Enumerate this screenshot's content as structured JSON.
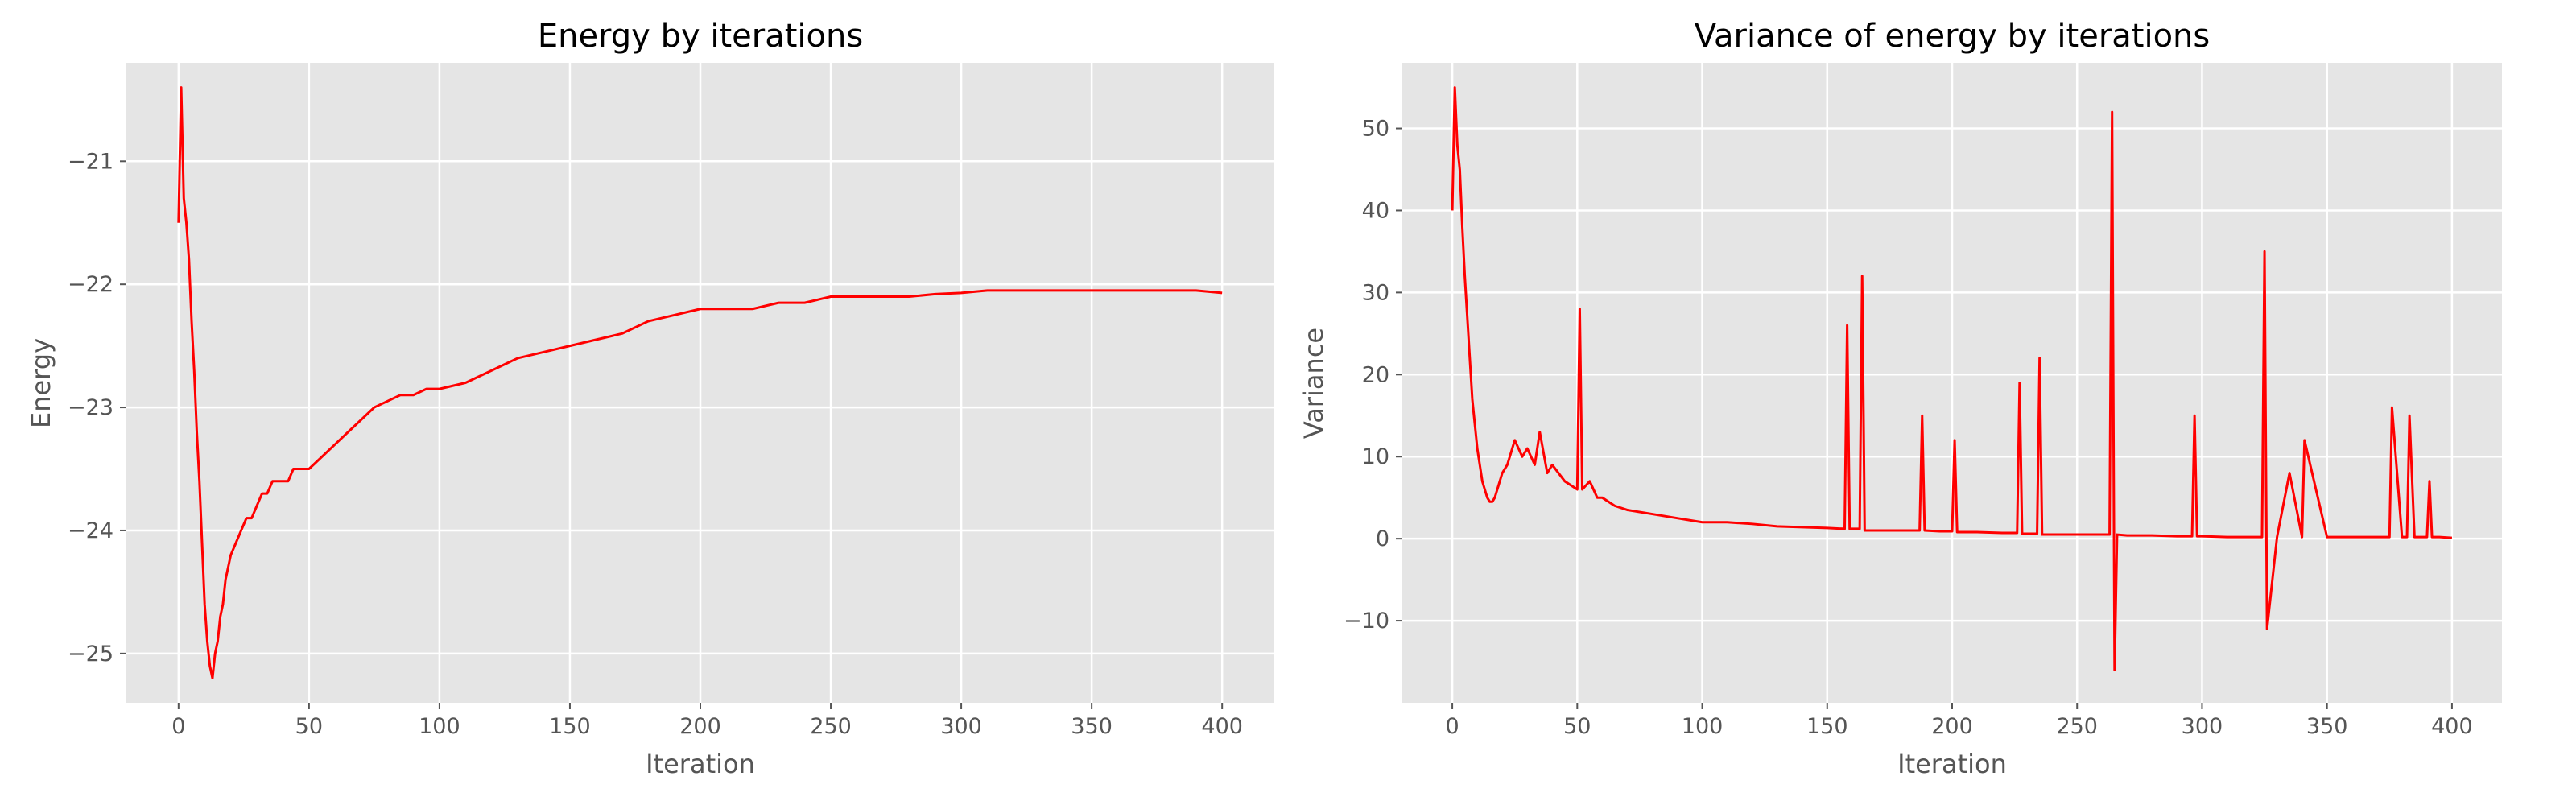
{
  "chart_data": [
    {
      "type": "line",
      "title": "Energy by iterations",
      "xlabel": "Iteration",
      "ylabel": "Energy",
      "xlim": [
        -20,
        420
      ],
      "ylim": [
        -25.4,
        -20.2
      ],
      "xticks": [
        0,
        50,
        100,
        150,
        200,
        250,
        300,
        350,
        400
      ],
      "yticks": [
        -25,
        -24,
        -23,
        -22,
        -21
      ],
      "xtick_labels": [
        "0",
        "50",
        "100",
        "150",
        "200",
        "250",
        "300",
        "350",
        "400"
      ],
      "ytick_labels": [
        "−25",
        "−24",
        "−23",
        "−22",
        "−21"
      ],
      "grid": true,
      "color": "#ff0000",
      "series": [
        {
          "x": [
            0,
            1,
            2,
            3,
            4,
            5,
            6,
            7,
            8,
            9,
            10,
            11,
            12,
            13,
            14,
            15,
            16,
            17,
            18,
            19,
            20,
            22,
            24,
            26,
            28,
            30,
            32,
            34,
            36,
            38,
            40,
            42,
            44,
            46,
            48,
            50,
            55,
            60,
            65,
            70,
            75,
            80,
            85,
            90,
            95,
            100,
            110,
            120,
            130,
            140,
            150,
            160,
            170,
            180,
            190,
            200,
            210,
            220,
            230,
            240,
            250,
            260,
            270,
            280,
            290,
            300,
            310,
            320,
            330,
            340,
            350,
            360,
            370,
            380,
            390,
            400
          ],
          "y": [
            -21.5,
            -20.4,
            -21.3,
            -21.5,
            -21.8,
            -22.3,
            -22.7,
            -23.2,
            -23.6,
            -24.1,
            -24.6,
            -24.9,
            -25.1,
            -25.2,
            -25.0,
            -24.9,
            -24.7,
            -24.6,
            -24.4,
            -24.3,
            -24.2,
            -24.1,
            -24.0,
            -23.9,
            -23.9,
            -23.8,
            -23.7,
            -23.7,
            -23.6,
            -23.6,
            -23.6,
            -23.6,
            -23.5,
            -23.5,
            -23.5,
            -23.5,
            -23.4,
            -23.3,
            -23.2,
            -23.1,
            -23.0,
            -22.95,
            -22.9,
            -22.9,
            -22.85,
            -22.85,
            -22.8,
            -22.7,
            -22.6,
            -22.55,
            -22.5,
            -22.45,
            -22.4,
            -22.3,
            -22.25,
            -22.2,
            -22.2,
            -22.2,
            -22.15,
            -22.15,
            -22.1,
            -22.1,
            -22.1,
            -22.1,
            -22.08,
            -22.07,
            -22.05,
            -22.05,
            -22.05,
            -22.05,
            -22.05,
            -22.05,
            -22.05,
            -22.05,
            -22.05,
            -22.07
          ]
        }
      ]
    },
    {
      "type": "line",
      "title": "Variance of energy by iterations",
      "xlabel": "Iteration",
      "ylabel": "Variance",
      "xlim": [
        -20,
        420
      ],
      "ylim": [
        -20,
        58
      ],
      "xticks": [
        0,
        50,
        100,
        150,
        200,
        250,
        300,
        350,
        400
      ],
      "yticks": [
        -10,
        0,
        10,
        20,
        30,
        40,
        50
      ],
      "xtick_labels": [
        "0",
        "50",
        "100",
        "150",
        "200",
        "250",
        "300",
        "350",
        "400"
      ],
      "ytick_labels": [
        "−10",
        "0",
        "10",
        "20",
        "30",
        "40",
        "50"
      ],
      "grid": true,
      "color": "#ff0000",
      "series": [
        {
          "x": [
            0,
            1,
            2,
            3,
            4,
            5,
            6,
            7,
            8,
            9,
            10,
            11,
            12,
            13,
            14,
            15,
            16,
            17,
            18,
            19,
            20,
            22,
            25,
            28,
            30,
            33,
            35,
            38,
            40,
            45,
            50,
            51,
            52,
            55,
            58,
            60,
            65,
            70,
            80,
            90,
            100,
            110,
            120,
            130,
            140,
            150,
            157,
            158,
            159,
            163,
            164,
            165,
            170,
            180,
            187,
            188,
            189,
            195,
            200,
            201,
            202,
            210,
            220,
            226,
            227,
            228,
            234,
            235,
            236,
            240,
            250,
            263,
            264,
            265,
            266,
            270,
            280,
            290,
            296,
            297,
            298,
            300,
            310,
            320,
            324,
            325,
            326,
            330,
            335,
            340,
            341,
            350,
            360,
            370,
            375,
            376,
            380,
            382,
            383,
            385,
            386,
            390,
            391,
            392,
            395,
            400
          ],
          "y": [
            40,
            55,
            48,
            45,
            38,
            32,
            27,
            22,
            17,
            14,
            11,
            9,
            7,
            6,
            5,
            4.5,
            4.5,
            5,
            6,
            7,
            8,
            9,
            12,
            10,
            11,
            9,
            13,
            8,
            9,
            7,
            6,
            28,
            6,
            7,
            5,
            5,
            4,
            3.5,
            3,
            2.5,
            2,
            2,
            1.8,
            1.5,
            1.4,
            1.3,
            1.2,
            26,
            1.2,
            1.2,
            32,
            1.0,
            1.0,
            1.0,
            1.0,
            15,
            1.0,
            0.9,
            0.9,
            12,
            0.8,
            0.8,
            0.7,
            0.7,
            19,
            0.6,
            0.6,
            22,
            0.5,
            0.5,
            0.5,
            0.5,
            52,
            -16,
            0.5,
            0.4,
            0.4,
            0.3,
            0.3,
            15,
            0.3,
            0.3,
            0.2,
            0.2,
            0.2,
            35,
            -11,
            0.2,
            8,
            0.2,
            12,
            0.2,
            0.2,
            0.2,
            0.2,
            16,
            0.2,
            0.2,
            15,
            0.2,
            0.2,
            0.2,
            7,
            0.2,
            0.2,
            0.1
          ]
        }
      ]
    }
  ]
}
